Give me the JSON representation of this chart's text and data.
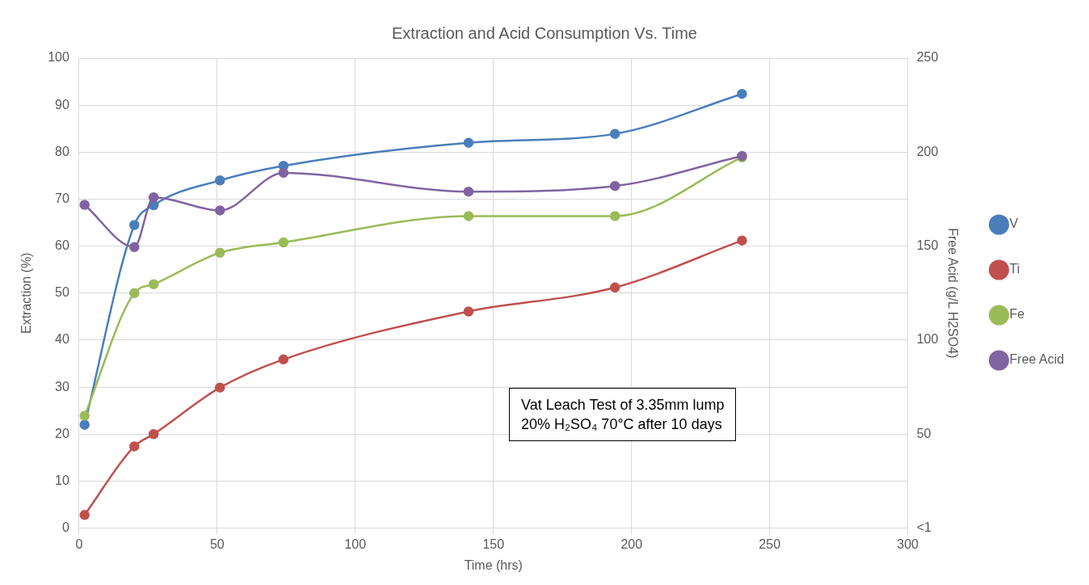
{
  "chart_data": {
    "type": "line",
    "title": "Extraction and Acid Consumption Vs. Time",
    "xlabel": "Time (hrs)",
    "ylabel": "Extraction (%)",
    "y2label": "Free Acid (g/L H2SO4)",
    "x": [
      2,
      20,
      27,
      51,
      74,
      141,
      194,
      240
    ],
    "series": [
      {
        "name": "V",
        "color": "#4a7ebb",
        "values": [
          22,
          64.5,
          68.7,
          74,
          77.1,
          82,
          83.9,
          92.4
        ]
      },
      {
        "name": "Ti",
        "color": "#c0504d",
        "values": [
          2.8,
          17.4,
          20,
          29.9,
          35.9,
          46.1,
          51.2,
          61.2
        ]
      },
      {
        "name": "Fe",
        "color": "#9bbb59",
        "values": [
          23.9,
          50,
          51.9,
          58.6,
          60.8,
          66.4,
          66.4,
          78.9
        ]
      },
      {
        "name": "Free Acid",
        "color": "#8064a2",
        "axis": "y2",
        "values": [
          172,
          149.5,
          176,
          169,
          189,
          179,
          182,
          198
        ]
      }
    ],
    "xlim": [
      0,
      300
    ],
    "xticks": [
      0,
      50,
      100,
      150,
      200,
      250,
      300
    ],
    "ylim": [
      0,
      100
    ],
    "yticks": [
      0,
      10,
      20,
      30,
      40,
      50,
      60,
      70,
      80,
      90,
      100
    ],
    "y2lim": [
      0,
      250
    ],
    "y2ticks": [
      {
        "value": 0,
        "label": "<1"
      },
      50,
      100,
      150,
      200,
      250
    ],
    "grid": true,
    "legend": "right",
    "marker": "circle",
    "line_style": "solid",
    "annotations": [
      "Vat Leach Test of 3.35mm lump\n20% H₂SO₄ 70°C after 10 days"
    ]
  }
}
